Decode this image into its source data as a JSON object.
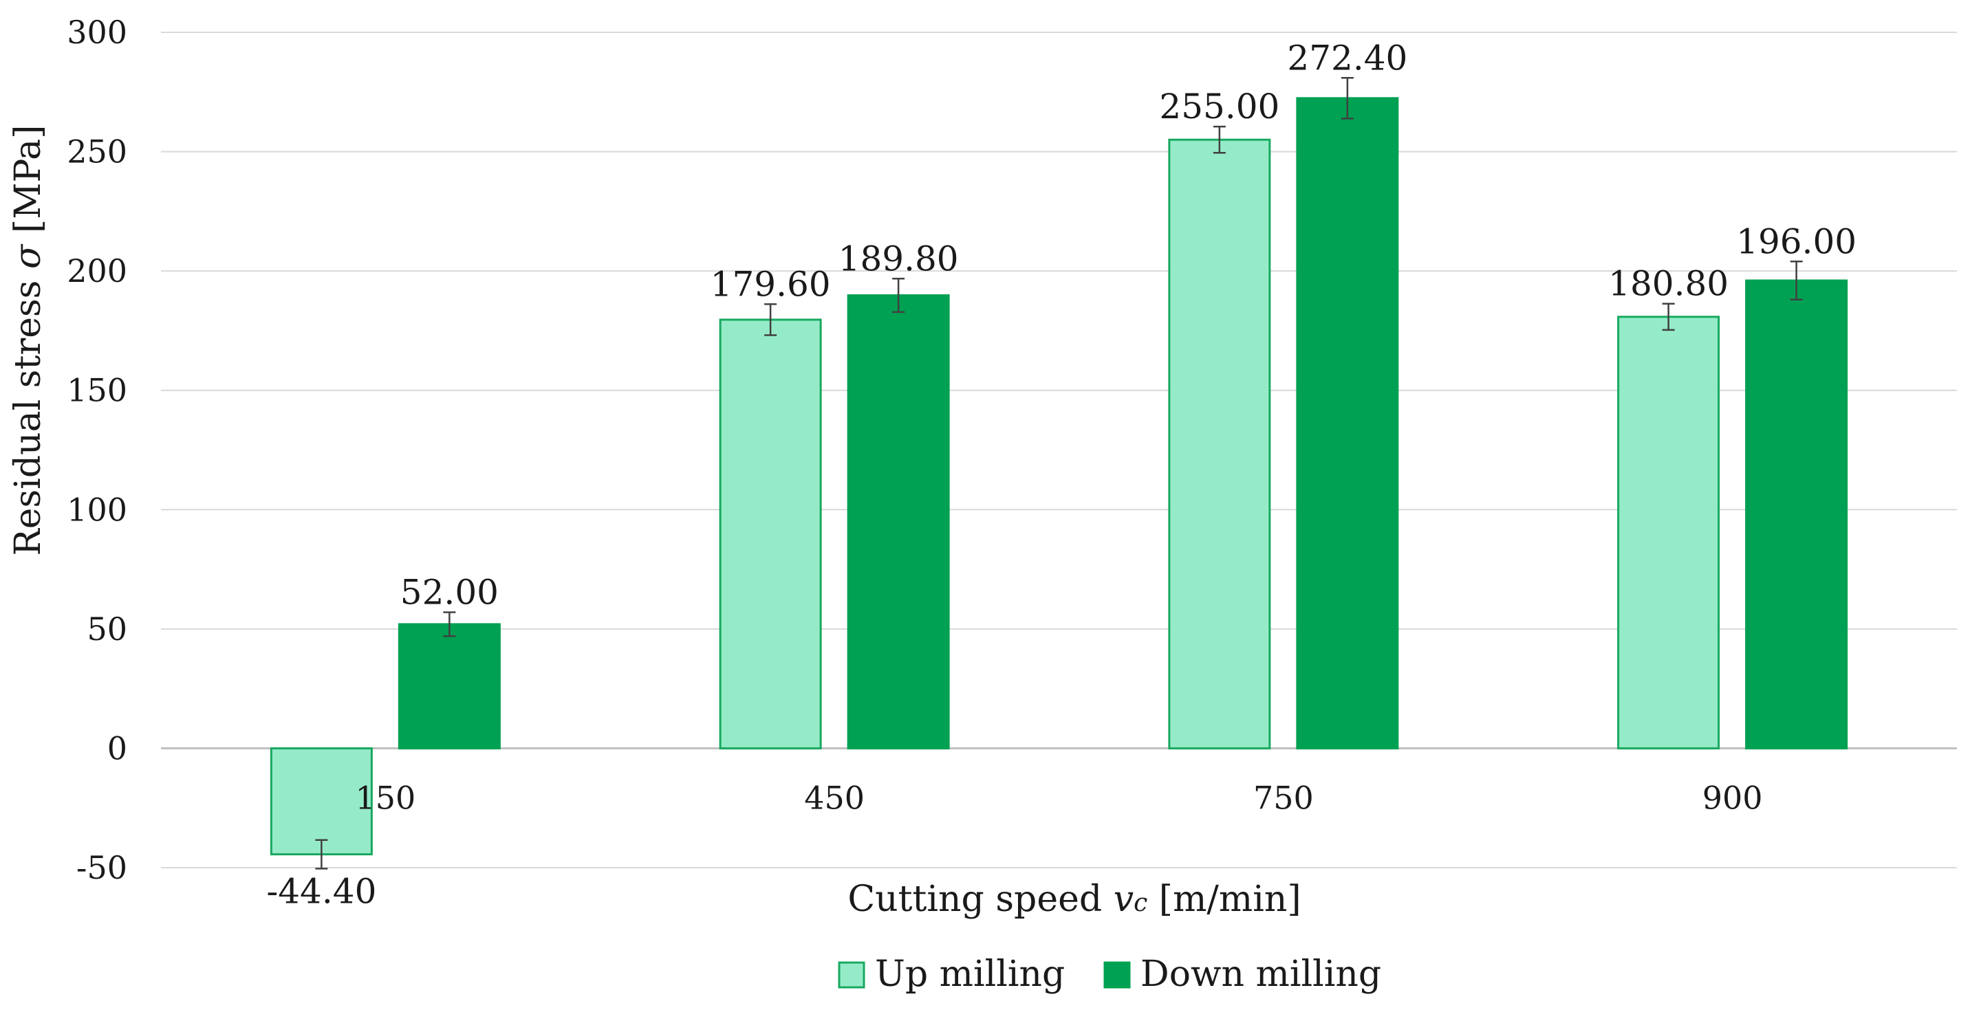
{
  "chart_data": {
    "type": "bar",
    "title": "",
    "categories": [
      "150",
      "450",
      "750",
      "900"
    ],
    "series": [
      {
        "name": "Up milling",
        "color": "#95ebc8",
        "edge": "#19a860",
        "values": [
          -44.4,
          179.6,
          255.0,
          180.8
        ],
        "labels": [
          "-44.40",
          "179.60",
          "255.00",
          "180.80"
        ],
        "err": [
          6,
          6.5,
          5.5,
          5.5
        ]
      },
      {
        "name": "Down milling",
        "color": "#00a152",
        "edge": "#00a152",
        "values": [
          52.0,
          189.8,
          272.4,
          196.0
        ],
        "labels": [
          "52.00",
          "189.80",
          "272.40",
          "196.00"
        ],
        "err": [
          5,
          7,
          8.5,
          8
        ]
      }
    ],
    "ylim": [
      -50,
      300
    ],
    "yticks": [
      -50,
      0,
      50,
      100,
      150,
      200,
      250,
      300
    ],
    "xlabel_main": "Cutting speed ",
    "xlabel_var": "v",
    "xlabel_sub": "c",
    "xlabel_unit": " [m/min]",
    "ylabel_main": "Residual stress ",
    "ylabel_var": "σ",
    "ylabel_unit": " [MPa]",
    "grid": true,
    "legend_position": "bottom-center"
  }
}
